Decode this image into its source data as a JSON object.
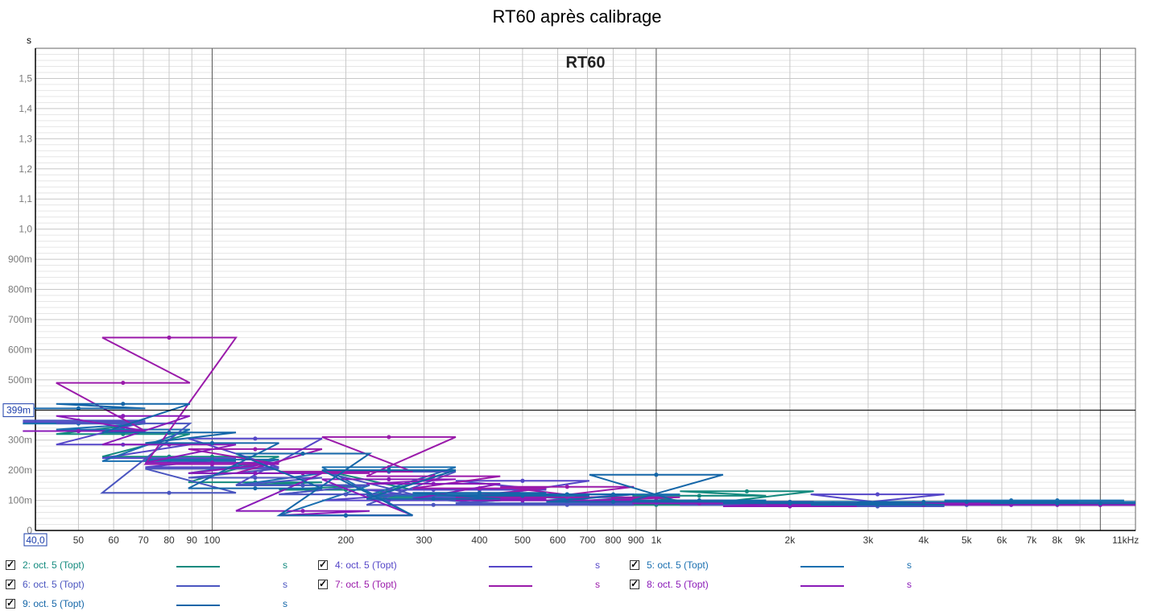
{
  "chart_data": {
    "type": "line",
    "title": "RT60 après calibrage",
    "inner_title": "RT60",
    "ylabel": "s",
    "xunit": "Hz",
    "xscale": "log",
    "xlim": [
      40,
      12000
    ],
    "ylim": [
      0,
      1.6
    ],
    "cursor": {
      "value": 0.399,
      "label": "399m"
    },
    "x_start_label": "40,0",
    "y_ticks": [
      {
        "v": 0,
        "label": "0"
      },
      {
        "v": 0.1,
        "label": "100m"
      },
      {
        "v": 0.2,
        "label": "200m"
      },
      {
        "v": 0.3,
        "label": "300m"
      },
      {
        "v": 0.4,
        "label": "400m"
      },
      {
        "v": 0.5,
        "label": "500m"
      },
      {
        "v": 0.6,
        "label": "600m"
      },
      {
        "v": 0.7,
        "label": "700m"
      },
      {
        "v": 0.8,
        "label": "800m"
      },
      {
        "v": 0.9,
        "label": "900m"
      },
      {
        "v": 1.0,
        "label": "1,0"
      },
      {
        "v": 1.1,
        "label": "1,1"
      },
      {
        "v": 1.2,
        "label": "1,2"
      },
      {
        "v": 1.3,
        "label": "1,3"
      },
      {
        "v": 1.4,
        "label": "1,4"
      },
      {
        "v": 1.5,
        "label": "1,5"
      }
    ],
    "x_ticks": [
      {
        "v": 50,
        "label": "50"
      },
      {
        "v": 60,
        "label": "60"
      },
      {
        "v": 70,
        "label": "70"
      },
      {
        "v": 80,
        "label": "80"
      },
      {
        "v": 90,
        "label": "90"
      },
      {
        "v": 100,
        "label": "100"
      },
      {
        "v": 200,
        "label": "200"
      },
      {
        "v": 300,
        "label": "300"
      },
      {
        "v": 400,
        "label": "400"
      },
      {
        "v": 500,
        "label": "500"
      },
      {
        "v": 600,
        "label": "600"
      },
      {
        "v": 700,
        "label": "700"
      },
      {
        "v": 800,
        "label": "800"
      },
      {
        "v": 900,
        "label": "900"
      },
      {
        "v": 1000,
        "label": "1k"
      },
      {
        "v": 2000,
        "label": "2k"
      },
      {
        "v": 3000,
        "label": "3k"
      },
      {
        "v": 4000,
        "label": "4k"
      },
      {
        "v": 5000,
        "label": "5k"
      },
      {
        "v": 6000,
        "label": "6k"
      },
      {
        "v": 7000,
        "label": "7k"
      },
      {
        "v": 8000,
        "label": "8k"
      },
      {
        "v": 9000,
        "label": "9k"
      },
      {
        "v": 11000,
        "label": "11kHz"
      }
    ],
    "x": [
      50,
      63,
      80,
      100,
      125,
      160,
      200,
      250,
      315,
      400,
      500,
      630,
      800,
      1000,
      1250,
      1600,
      2000,
      2500,
      3150,
      4000,
      5000,
      6300,
      8000,
      10000
    ],
    "series": [
      {
        "name": "2: oct. 5 (Topt)",
        "color": "#138a7e",
        "values": [
          0.355,
          0.32,
          0.245,
          0.245,
          0.16,
          0.15,
          0.135,
          0.2,
          0.11,
          0.11,
          0.09,
          0.09,
          0.09,
          0.085,
          0.115,
          0.13,
          0.095,
          0.09,
          0.09,
          0.09,
          0.09,
          0.09,
          0.09,
          0.085
        ]
      },
      {
        "name": "4: oct. 5 (Topt)",
        "color": "#5546c8",
        "values": [
          0.36,
          0.285,
          0.24,
          0.21,
          0.305,
          0.15,
          0.12,
          0.1,
          0.135,
          0.135,
          0.165,
          0.12,
          0.1,
          0.1,
          0.095,
          0.09,
          0.09,
          0.085,
          0.12,
          0.09,
          0.09,
          0.09,
          0.09,
          0.09
        ]
      },
      {
        "name": "5: oct. 5 (Topt)",
        "color": "#1a6fb0",
        "values": [
          0.355,
          0.335,
          0.23,
          0.235,
          0.19,
          0.15,
          0.05,
          0.21,
          0.115,
          0.12,
          0.1,
          0.12,
          0.12,
          0.1,
          0.1,
          0.095,
          0.095,
          0.09,
          0.085,
          0.09,
          0.085,
          0.1,
          0.1,
          0.095
        ]
      },
      {
        "name": "6: oct. 5 (Topt)",
        "color": "#4a55c0",
        "values": [
          0.365,
          0.355,
          0.125,
          0.205,
          0.175,
          0.15,
          0.12,
          0.195,
          0.085,
          0.11,
          0.09,
          0.085,
          0.09,
          0.09,
          0.09,
          0.085,
          0.085,
          0.085,
          0.08,
          0.085,
          0.085,
          0.085,
          0.085,
          0.085
        ]
      },
      {
        "name": "7: oct. 5 (Topt)",
        "color": "#9a1aaa",
        "values": [
          0.33,
          0.49,
          0.64,
          0.22,
          0.27,
          0.19,
          0.195,
          0.31,
          0.18,
          0.14,
          0.11,
          0.145,
          0.11,
          0.1,
          0.09,
          0.095,
          0.09,
          0.085,
          0.09,
          0.09,
          0.09,
          0.09,
          0.09,
          0.085
        ]
      },
      {
        "name": "8: oct. 5 (Topt)",
        "color": "#8a1ab8",
        "values": [
          0.33,
          0.38,
          0.285,
          0.225,
          0.19,
          0.065,
          0.05,
          0.17,
          0.155,
          0.105,
          0.1,
          0.1,
          0.1,
          0.095,
          0.09,
          0.095,
          0.08,
          0.085,
          0.085,
          0.085,
          0.09,
          0.085,
          0.085,
          0.085
        ]
      },
      {
        "name": "9: oct. 5 (Topt)",
        "color": "#1466a8",
        "values": [
          0.405,
          0.42,
          0.325,
          0.29,
          0.14,
          0.255,
          0.05,
          0.2,
          0.105,
          0.125,
          0.115,
          0.12,
          0.095,
          0.185,
          0.1,
          0.095,
          0.09,
          0.09,
          0.085,
          0.095,
          0.095,
          0.095,
          0.09,
          0.09
        ]
      }
    ]
  },
  "legend": [
    {
      "label": "2: oct. 5 (Topt)",
      "unit": "s",
      "color": "#138a7e"
    },
    {
      "label": "4: oct. 5 (Topt)",
      "unit": "s",
      "color": "#5546c8"
    },
    {
      "label": "5: oct. 5 (Topt)",
      "unit": "s",
      "color": "#1a6fb0"
    },
    {
      "label": "6: oct. 5 (Topt)",
      "unit": "s",
      "color": "#4a55c0"
    },
    {
      "label": "7: oct. 5 (Topt)",
      "unit": "s",
      "color": "#9a1aaa"
    },
    {
      "label": "8: oct. 5 (Topt)",
      "unit": "s",
      "color": "#8a1ab8"
    },
    {
      "label": "9: oct. 5 (Topt)",
      "unit": "s",
      "color": "#1466a8"
    }
  ]
}
